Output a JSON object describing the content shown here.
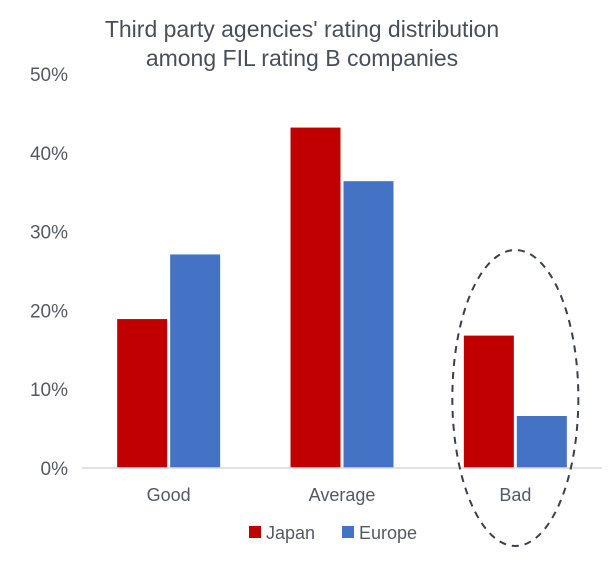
{
  "chart_data": {
    "type": "bar",
    "title_lines": [
      "Third party agencies' rating distribution",
      "among FIL rating B companies"
    ],
    "categories": [
      "Good",
      "Average",
      "Bad"
    ],
    "series": [
      {
        "name": "Japan",
        "color": "#c00000",
        "values": [
          18.9,
          43.2,
          16.8
        ]
      },
      {
        "name": "Europe",
        "color": "#4472c4",
        "values": [
          27.1,
          36.4,
          6.6
        ]
      }
    ],
    "ylim": [
      0,
      50
    ],
    "yticks": [
      0,
      10,
      20,
      30,
      40,
      50
    ],
    "ytick_format": "percent",
    "grid": false,
    "legend_position": "bottom",
    "annotation": {
      "type": "dashed-ellipse",
      "category": "Bad",
      "color": "#3a3f4a"
    }
  }
}
